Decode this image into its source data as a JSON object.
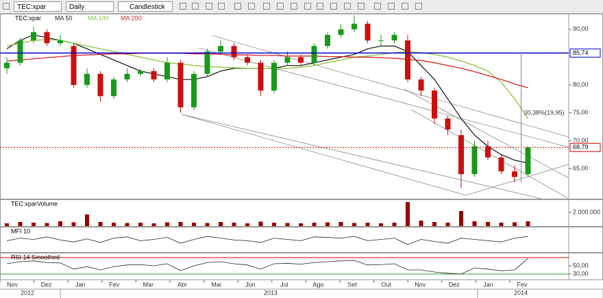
{
  "toolbar": {
    "symbol": "TEC:xpar",
    "period": "Daily",
    "style": "Candlestick"
  },
  "chart_data": [
    {
      "type": "candlestick",
      "title": "TEC:xpar",
      "open": [
        83,
        84,
        88,
        89.5,
        87.5,
        87,
        80,
        82,
        78,
        81,
        82,
        82.5,
        81,
        84,
        76,
        82,
        86,
        87,
        85,
        84,
        79,
        84,
        85,
        84,
        87,
        89,
        90,
        91,
        88,
        88,
        88,
        81,
        79,
        74,
        71,
        64,
        69,
        67,
        64.5,
        64
      ],
      "high": [
        85,
        88.5,
        90.5,
        90,
        89,
        87.5,
        83,
        82.5,
        81.5,
        83,
        83,
        83,
        85,
        84.5,
        82.5,
        86.5,
        88,
        87.5,
        85.5,
        84.5,
        84.5,
        86,
        85.5,
        87.5,
        89.5,
        91,
        92.5,
        91.5,
        89,
        89.5,
        89,
        81.5,
        79.5,
        74.5,
        72,
        70,
        70,
        67.5,
        65.5,
        69
      ],
      "low": [
        82,
        83.5,
        87.5,
        87,
        87,
        79.5,
        79.5,
        77,
        77.5,
        80.5,
        81.5,
        80.5,
        80.5,
        75,
        75.5,
        81.5,
        85.5,
        84.5,
        83.5,
        78,
        78.5,
        83.5,
        83.5,
        83.5,
        86.5,
        88.5,
        89.5,
        87.5,
        87,
        87.5,
        80.5,
        78,
        73,
        71,
        61.5,
        63.5,
        66.5,
        64,
        62.5,
        63.5
      ],
      "close": [
        84,
        88,
        89.5,
        87.5,
        88,
        80,
        82,
        78,
        81,
        82,
        82.5,
        81,
        84,
        76,
        82,
        86,
        87,
        85,
        84,
        79,
        84,
        85,
        84,
        87,
        89,
        90,
        91,
        88,
        88,
        89,
        81,
        79,
        74,
        72,
        64,
        69,
        67,
        64.5,
        63.5,
        68.8
      ],
      "up_color": "#1a9a1a",
      "down_color": "#cc1010",
      "series": [
        {
          "name": "MA 50",
          "color": "#222222",
          "values": [
            86.5,
            88,
            89,
            88.5,
            88,
            87.5,
            86.5,
            85.5,
            84.5,
            83.5,
            82.5,
            82,
            81.5,
            81,
            81,
            81.5,
            82.5,
            83,
            83,
            83,
            83,
            83.5,
            83.5,
            84,
            84.5,
            85,
            85.5,
            86.5,
            87,
            87,
            86,
            83.5,
            81,
            77.5,
            74,
            71,
            69,
            67.5,
            66.5,
            66
          ]
        },
        {
          "name": "MA 100",
          "color": "#8ac43a",
          "values": [
            87,
            87.5,
            88,
            88.2,
            88,
            87.5,
            87,
            86.5,
            86,
            85.5,
            85,
            84.5,
            84,
            83.8,
            83.5,
            83.3,
            83.2,
            83.1,
            83,
            83,
            83,
            83,
            83.2,
            83.5,
            84,
            84.5,
            85,
            85.2,
            85.5,
            85.8,
            86,
            85.8,
            85.5,
            85,
            84.3,
            83.5,
            82.5,
            80.5,
            77.5,
            74
          ]
        },
        {
          "name": "MA 200",
          "color": "#dd2020",
          "values": [
            84.3,
            84.5,
            84.7,
            84.9,
            85.1,
            85.3,
            85.4,
            85.5,
            85.6,
            85.6,
            85.7,
            85.7,
            85.7,
            85.7,
            85.6,
            85.6,
            85.5,
            85.4,
            85.4,
            85.3,
            85.3,
            85.2,
            85.2,
            85.2,
            85.1,
            85.1,
            85,
            85,
            84.9,
            84.8,
            84.6,
            84.4,
            84,
            83.5,
            83,
            82.4,
            81.7,
            81,
            80.2,
            79.5
          ]
        }
      ],
      "ylim": [
        59.6,
        92.8
      ],
      "yticks": [
        {
          "value": 90,
          "label": "90,00"
        },
        {
          "value": 80,
          "label": "80,00"
        },
        {
          "value": 75,
          "label": "75,00"
        },
        {
          "value": 70,
          "label": "70,00"
        },
        {
          "value": 65,
          "label": "65,00"
        }
      ],
      "lines": [
        {
          "value": 85.74,
          "label": "85,74",
          "color": "#0000cc"
        },
        {
          "value": 68.79,
          "label": "68,79",
          "color": "#e00000"
        }
      ],
      "annotation": "30,38%(19,95)"
    },
    {
      "type": "bar",
      "title": "TEC:xparVolume",
      "color": "#990000",
      "values": [
        400000,
        600000,
        500000,
        450000,
        700000,
        550000,
        1700000,
        600000,
        500000,
        450000,
        500000,
        400000,
        550000,
        600000,
        500000,
        450000,
        600000,
        500000,
        400000,
        650000,
        500000,
        450000,
        400000,
        500000,
        550000,
        600000,
        450000,
        500000,
        400000,
        500000,
        3500000,
        800000,
        600000,
        500000,
        2200000,
        700000,
        600000,
        500000,
        550000,
        700000
      ],
      "ylim": [
        0,
        3900000
      ],
      "yticks": [
        {
          "value": 2000000,
          "label": "2.000.000"
        }
      ]
    },
    {
      "type": "line",
      "title": "MFI 10",
      "color": "#222222",
      "values": [
        45,
        55,
        50,
        60,
        48,
        40,
        52,
        38,
        55,
        60,
        45,
        50,
        58,
        35,
        50,
        62,
        55,
        48,
        45,
        38,
        55,
        50,
        45,
        60,
        58,
        55,
        62,
        45,
        50,
        55,
        30,
        50,
        42,
        35,
        55,
        50,
        45,
        40,
        55,
        62
      ],
      "ylim": [
        0,
        100
      ]
    },
    {
      "type": "line",
      "title": "RSI 14 Smoothed",
      "color": "#222222",
      "values": [
        55,
        60,
        62,
        58,
        57,
        42,
        48,
        40,
        48,
        52,
        53,
        50,
        55,
        38,
        50,
        58,
        60,
        55,
        52,
        42,
        55,
        56,
        54,
        58,
        60,
        62,
        63,
        52,
        53,
        55,
        40,
        40,
        35,
        32,
        30,
        45,
        42,
        38,
        40,
        68
      ],
      "ylim": [
        16.7,
        81.7
      ],
      "yticks": [
        {
          "value": 50,
          "label": "50,00"
        },
        {
          "value": 30,
          "label": "30,00"
        }
      ],
      "hlines": [
        {
          "value": 70,
          "color": "#e00000"
        },
        {
          "value": 30,
          "color": "#2a9a2a"
        }
      ]
    }
  ],
  "x_axis": {
    "months": [
      "Nov",
      "Dez",
      "Jan",
      "Fev",
      "Mar",
      "Abr",
      "Mai",
      "Jun",
      "Jul",
      "Ago",
      "Set",
      "Out",
      "Nov",
      "Dez",
      "Jan",
      "Fev"
    ],
    "years": [
      "2012",
      "2013",
      "2014"
    ]
  }
}
